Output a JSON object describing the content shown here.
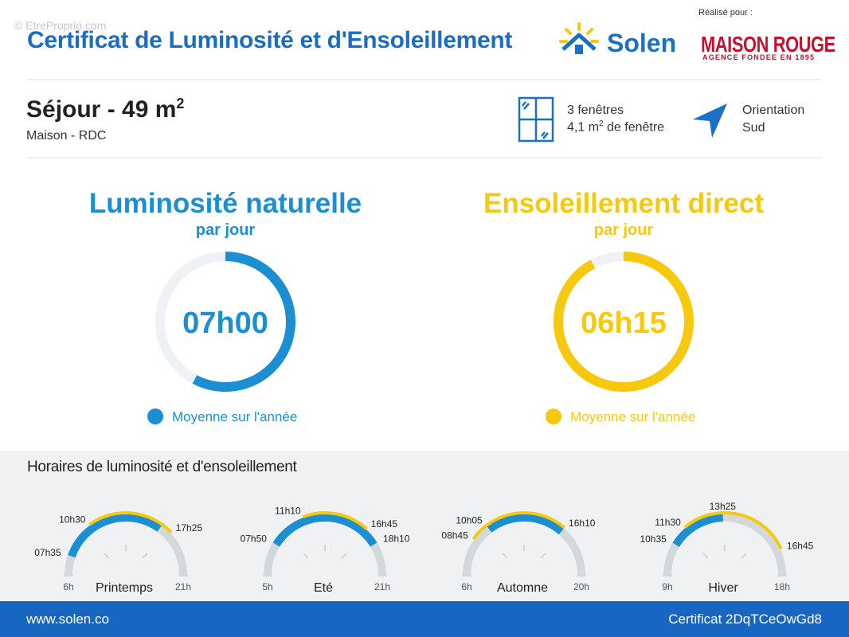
{
  "header": {
    "watermark": "© EtreProprio.com",
    "title": "Certificat de Luminosité et d'Ensoleillement",
    "brand": "Solen",
    "made_for": "Réalisé pour :",
    "client": "MAISON ROUGE",
    "client_tagline": "AGENCE FONDEE EN 1895"
  },
  "room": {
    "name": "Séjour - 49 m",
    "name_sup": "2",
    "subtitle": "Maison - RDC",
    "windows": "3 fenêtres",
    "window_area": "4,1 m",
    "window_area_sup": "2",
    "window_area_suffix": " de fenêtre",
    "orientation_label": "Orientation",
    "orientation": "Sud"
  },
  "gauges": [
    {
      "title": "Luminosité naturelle",
      "subtitle": "par jour",
      "value": "07h00",
      "legend": "Moyenne sur l'année",
      "color": "#1b8fd2"
    },
    {
      "title": "Ensoleillement direct",
      "subtitle": "par jour",
      "value": "06h15",
      "legend": "Moyenne sur l'année",
      "color": "#f6c90e"
    }
  ],
  "schedule": {
    "title": "Horaires de luminosité et d'ensoleillement",
    "seasons": [
      {
        "name": "Printemps",
        "start": "6h",
        "end": "21h",
        "times": [
          "07h35",
          "10h30",
          "17h25"
        ]
      },
      {
        "name": "Eté",
        "start": "5h",
        "end": "21h",
        "times": [
          "07h50",
          "11h10",
          "16h45",
          "18h10"
        ]
      },
      {
        "name": "Automne",
        "start": "6h",
        "end": "20h",
        "times": [
          "08h45",
          "10h05",
          "16h10"
        ]
      },
      {
        "name": "Hiver",
        "start": "9h",
        "end": "18h",
        "times": [
          "10h35",
          "11h30",
          "13h25",
          "16h45"
        ]
      }
    ]
  },
  "footer": {
    "website": "www.solen.co",
    "certificate": "Certificat 2DqTCeOwGd8"
  }
}
